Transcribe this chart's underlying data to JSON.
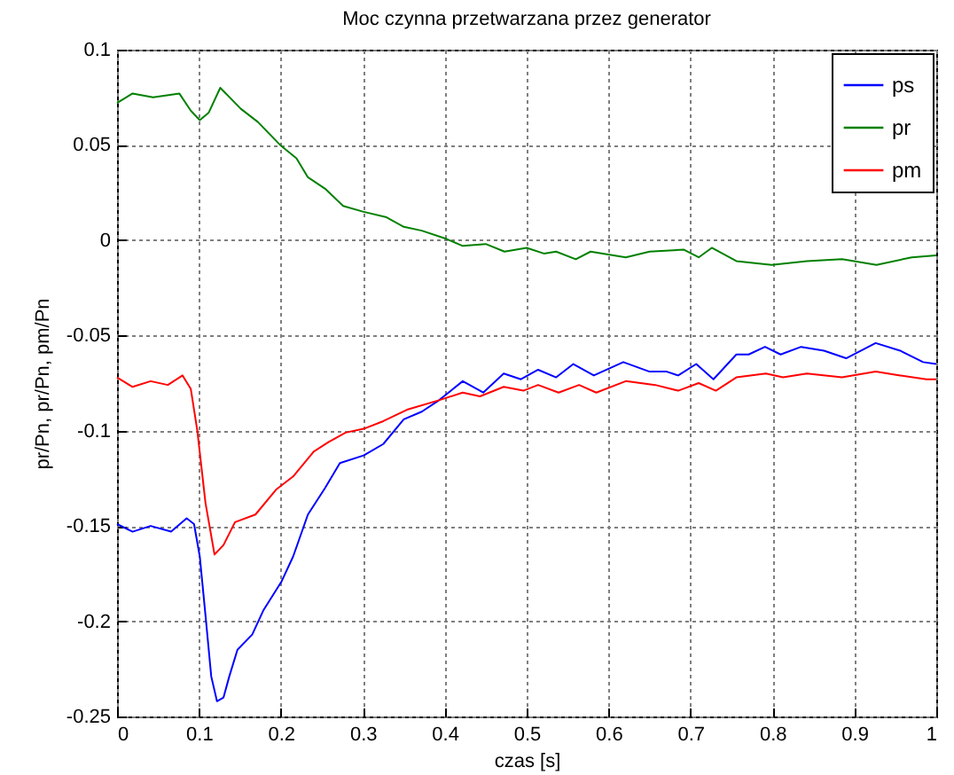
{
  "chart_data": {
    "type": "line",
    "title": "Moc czynna przetwarzana przez generator",
    "xlabel": "czas [s]",
    "ylabel": "pr/Pn, pr/Pn, pm/Pn",
    "xlim": [
      0,
      1
    ],
    "ylim": [
      -0.25,
      0.1
    ],
    "xticks": [
      0,
      0.1,
      0.2,
      0.3,
      0.4,
      0.5,
      0.6,
      0.7,
      0.8,
      0.9,
      1
    ],
    "yticks": [
      -0.25,
      -0.2,
      -0.15,
      -0.1,
      -0.05,
      0,
      0.05,
      0.1
    ],
    "grid": true,
    "legend": "top right",
    "series": [
      {
        "name": "ps",
        "color": "#0000ff",
        "x": [
          0,
          0.019,
          0.041,
          0.066,
          0.085,
          0.094,
          0.101,
          0.108,
          0.115,
          0.122,
          0.13,
          0.137,
          0.147,
          0.165,
          0.179,
          0.201,
          0.215,
          0.233,
          0.254,
          0.272,
          0.301,
          0.325,
          0.35,
          0.372,
          0.393,
          0.422,
          0.447,
          0.472,
          0.493,
          0.514,
          0.536,
          0.557,
          0.582,
          0.618,
          0.65,
          0.671,
          0.685,
          0.707,
          0.728,
          0.756,
          0.771,
          0.791,
          0.81,
          0.835,
          0.863,
          0.89,
          0.926,
          0.956,
          0.984,
          1
        ],
        "values": [
          -0.149,
          -0.153,
          -0.15,
          -0.153,
          -0.146,
          -0.149,
          -0.166,
          -0.197,
          -0.229,
          -0.242,
          -0.24,
          -0.229,
          -0.215,
          -0.207,
          -0.194,
          -0.179,
          -0.166,
          -0.144,
          -0.13,
          -0.117,
          -0.113,
          -0.107,
          -0.094,
          -0.09,
          -0.084,
          -0.074,
          -0.08,
          -0.07,
          -0.073,
          -0.068,
          -0.072,
          -0.065,
          -0.071,
          -0.064,
          -0.069,
          -0.069,
          -0.071,
          -0.065,
          -0.073,
          -0.06,
          -0.06,
          -0.056,
          -0.06,
          -0.056,
          -0.058,
          -0.062,
          -0.054,
          -0.058,
          -0.064,
          -0.065
        ]
      },
      {
        "name": "pr",
        "color": "#008000",
        "x": [
          0,
          0.019,
          0.044,
          0.076,
          0.09,
          0.101,
          0.112,
          0.126,
          0.151,
          0.172,
          0.199,
          0.219,
          0.233,
          0.254,
          0.276,
          0.3,
          0.329,
          0.35,
          0.372,
          0.4,
          0.422,
          0.45,
          0.473,
          0.5,
          0.521,
          0.536,
          0.56,
          0.578,
          0.621,
          0.65,
          0.692,
          0.71,
          0.726,
          0.756,
          0.799,
          0.842,
          0.885,
          0.927,
          0.97,
          1
        ],
        "values": [
          0.072,
          0.077,
          0.075,
          0.077,
          0.068,
          0.063,
          0.067,
          0.08,
          0.069,
          0.062,
          0.05,
          0.043,
          0.033,
          0.027,
          0.018,
          0.015,
          0.012,
          0.007,
          0.005,
          0.001,
          -0.003,
          -0.002,
          -0.006,
          -0.004,
          -0.007,
          -0.006,
          -0.01,
          -0.006,
          -0.009,
          -0.006,
          -0.005,
          -0.009,
          -0.004,
          -0.011,
          -0.013,
          -0.011,
          -0.01,
          -0.013,
          -0.009,
          -0.008
        ]
      },
      {
        "name": "pm",
        "color": "#ff0000",
        "x": [
          0,
          0.019,
          0.041,
          0.062,
          0.08,
          0.09,
          0.098,
          0.108,
          0.119,
          0.13,
          0.144,
          0.169,
          0.194,
          0.215,
          0.24,
          0.258,
          0.279,
          0.301,
          0.325,
          0.354,
          0.393,
          0.422,
          0.443,
          0.472,
          0.496,
          0.514,
          0.539,
          0.564,
          0.585,
          0.621,
          0.657,
          0.685,
          0.71,
          0.731,
          0.756,
          0.792,
          0.813,
          0.842,
          0.885,
          0.926,
          0.956,
          0.988,
          1
        ],
        "values": [
          -0.072,
          -0.077,
          -0.074,
          -0.076,
          -0.071,
          -0.078,
          -0.1,
          -0.138,
          -0.165,
          -0.16,
          -0.148,
          -0.144,
          -0.131,
          -0.124,
          -0.111,
          -0.106,
          -0.101,
          -0.099,
          -0.095,
          -0.089,
          -0.084,
          -0.08,
          -0.082,
          -0.077,
          -0.079,
          -0.076,
          -0.08,
          -0.076,
          -0.08,
          -0.074,
          -0.076,
          -0.079,
          -0.075,
          -0.079,
          -0.072,
          -0.07,
          -0.072,
          -0.07,
          -0.072,
          -0.069,
          -0.071,
          -0.073,
          -0.073
        ]
      }
    ]
  }
}
